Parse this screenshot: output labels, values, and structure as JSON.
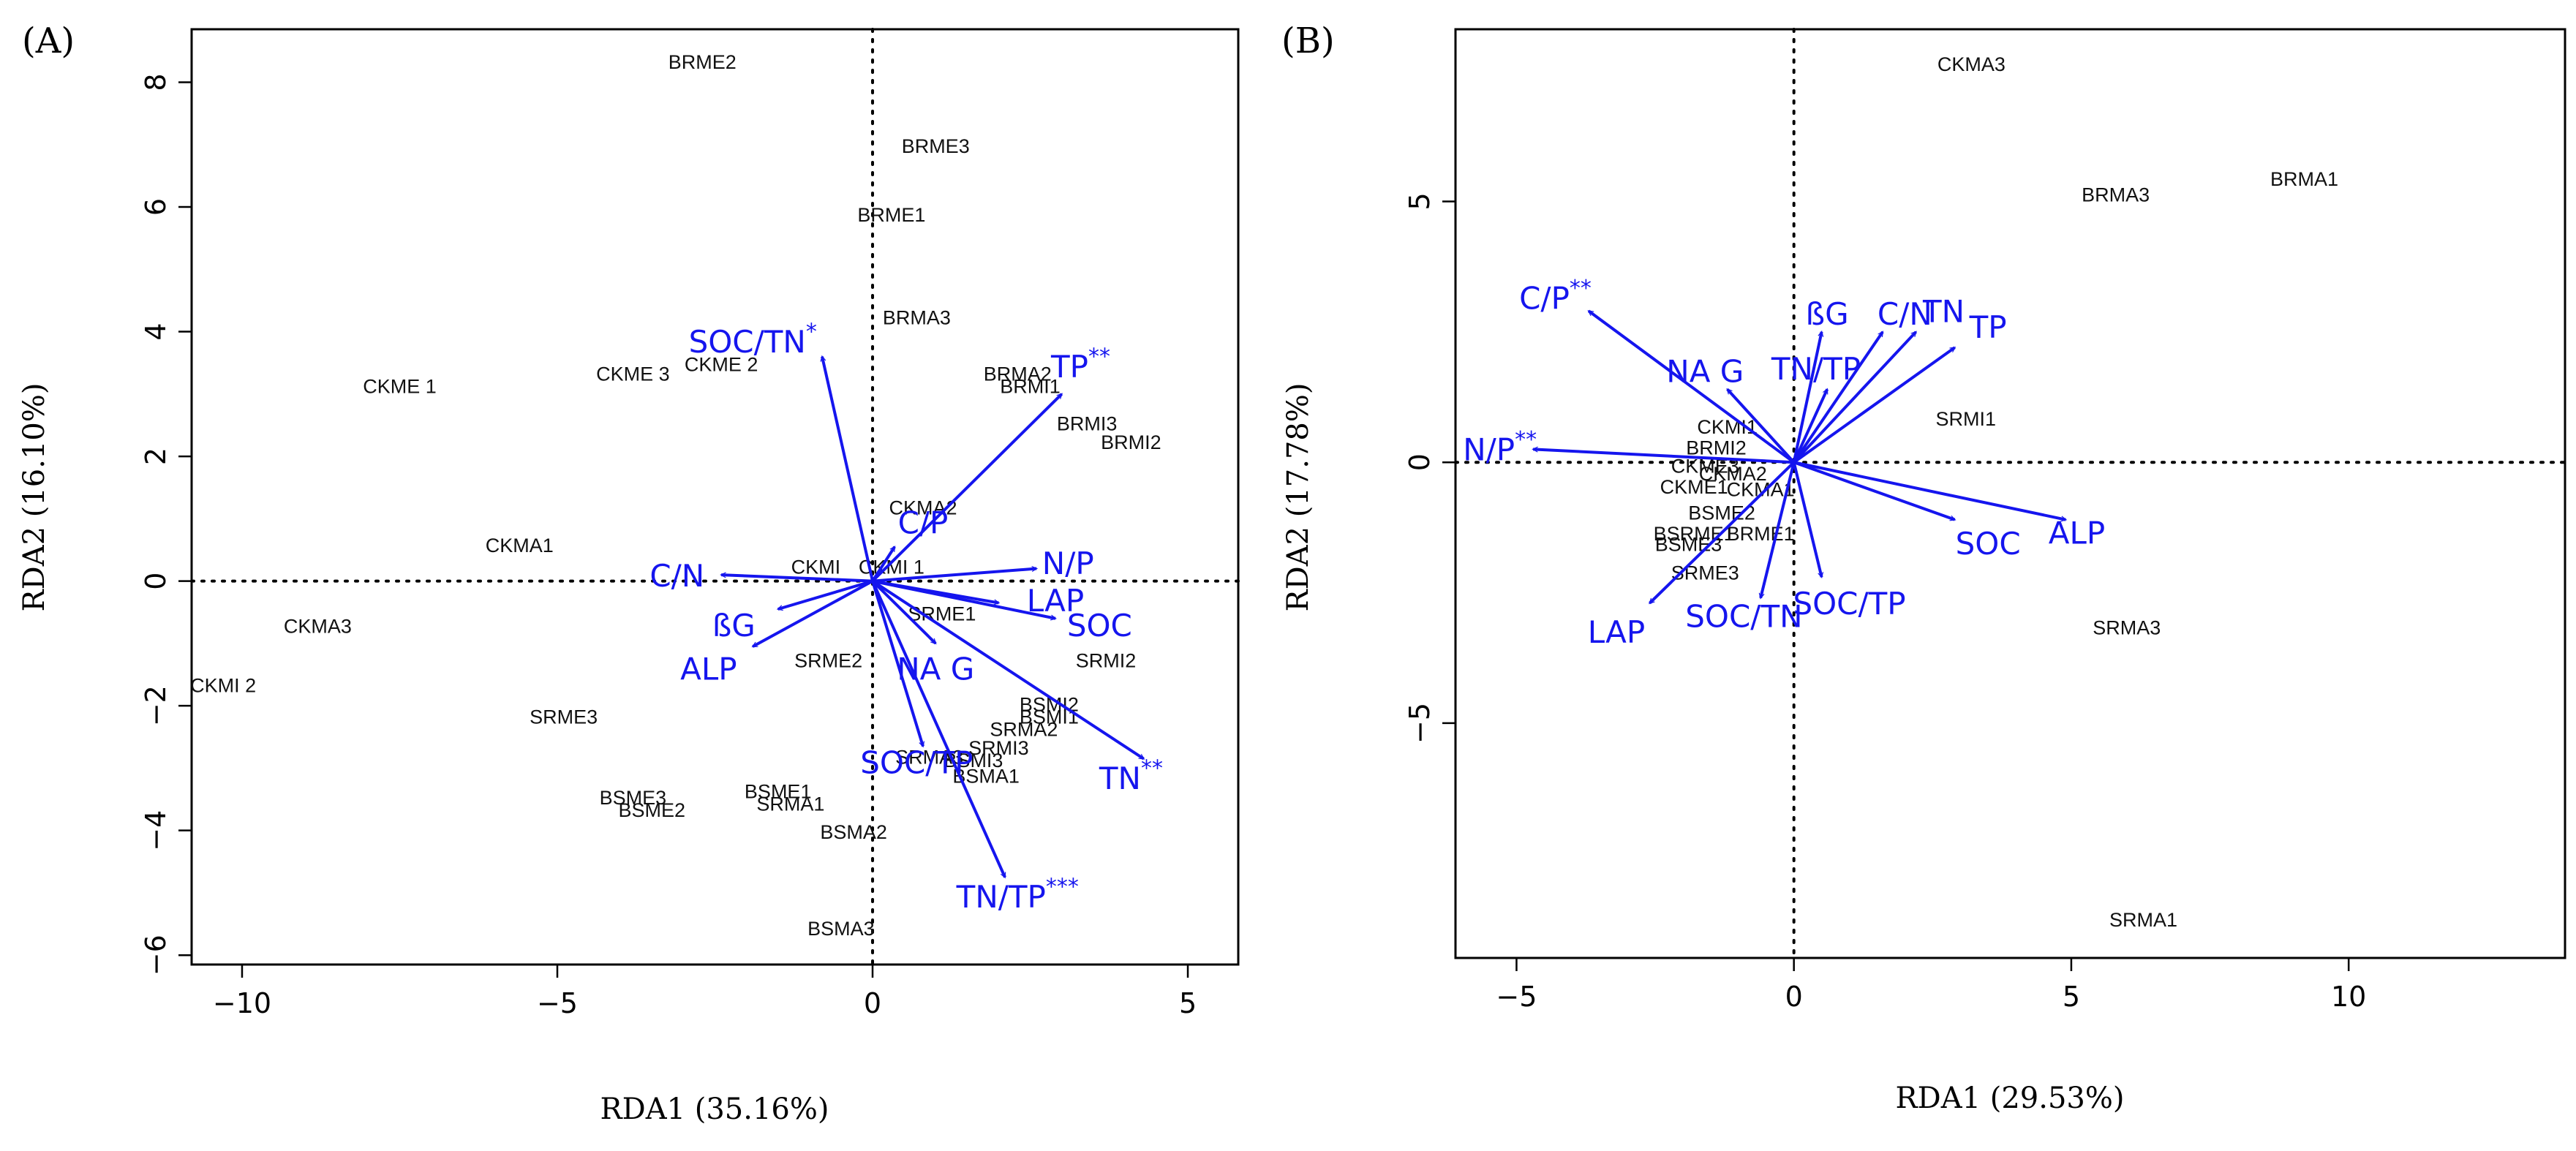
{
  "colors": {
    "arrow": "#1515ee",
    "axis": "#000000",
    "site_text": "#111111"
  },
  "chart_data": [
    {
      "panel": "(A)",
      "type": "scatter",
      "xlabel": "RDA1 (35.16%)",
      "ylabel": "RDA2 (16.10%)",
      "xlim": [
        -10.8,
        5.8
      ],
      "ylim": [
        -6.15,
        8.85
      ],
      "xticks": [
        -10,
        -5,
        0,
        5
      ],
      "yticks": [
        -6,
        -4,
        -2,
        0,
        2,
        4,
        6,
        8
      ],
      "sites": [
        {
          "label": "BRME2",
          "x": -2.7,
          "y": 8.3
        },
        {
          "label": "BRME3",
          "x": 1.0,
          "y": 6.95
        },
        {
          "label": "BRME1",
          "x": 0.3,
          "y": 5.85
        },
        {
          "label": "BRMA3",
          "x": 0.7,
          "y": 4.2
        },
        {
          "label": "BRMA2",
          "x": 2.3,
          "y": 3.3
        },
        {
          "label": "BRMI1",
          "x": 2.5,
          "y": 3.1
        },
        {
          "label": "BRMI3",
          "x": 3.4,
          "y": 2.5
        },
        {
          "label": "BRMI2",
          "x": 4.1,
          "y": 2.2
        },
        {
          "label": "CKME 1",
          "x": -7.5,
          "y": 3.1
        },
        {
          "label": "CKME 3",
          "x": -3.8,
          "y": 3.3
        },
        {
          "label": "CKME 2",
          "x": -2.4,
          "y": 3.45
        },
        {
          "label": "CKMA1",
          "x": -5.6,
          "y": 0.55
        },
        {
          "label": "CKMA2",
          "x": 0.8,
          "y": 1.15
        },
        {
          "label": "CKMI",
          "x": -0.9,
          "y": 0.2
        },
        {
          "label": "CKMI 1",
          "x": 0.3,
          "y": 0.2
        },
        {
          "label": "CKMA3",
          "x": -8.8,
          "y": -0.75
        },
        {
          "label": "CKMI 2",
          "x": -10.3,
          "y": -1.7
        },
        {
          "label": "SRME1",
          "x": 1.1,
          "y": -0.55
        },
        {
          "label": "SRME2",
          "x": -0.7,
          "y": -1.3
        },
        {
          "label": "SRMI2",
          "x": 3.7,
          "y": -1.3
        },
        {
          "label": "SRME3",
          "x": -4.9,
          "y": -2.2
        },
        {
          "label": "BSMI2",
          "x": 2.8,
          "y": -2.0
        },
        {
          "label": "BSMI1",
          "x": 2.8,
          "y": -2.2
        },
        {
          "label": "SRMA2",
          "x": 2.4,
          "y": -2.4
        },
        {
          "label": "SRMI3",
          "x": 2.0,
          "y": -2.7
        },
        {
          "label": "SRMA3",
          "x": 0.9,
          "y": -2.85
        },
        {
          "label": "BSMI3",
          "x": 1.6,
          "y": -2.9
        },
        {
          "label": "BSMA1",
          "x": 1.8,
          "y": -3.15
        },
        {
          "label": "BSME3",
          "x": -3.8,
          "y": -3.5
        },
        {
          "label": "BSME2",
          "x": -3.5,
          "y": -3.7
        },
        {
          "label": "BSME1",
          "x": -1.5,
          "y": -3.4
        },
        {
          "label": "SRMA1",
          "x": -1.3,
          "y": -3.6
        },
        {
          "label": "BSMA2",
          "x": -0.3,
          "y": -4.05
        },
        {
          "label": "BSMA3",
          "x": -0.5,
          "y": -5.6
        }
      ],
      "vectors": [
        {
          "label": "SOC/TN",
          "sig": "*",
          "x": -0.8,
          "y": 3.6,
          "lx": -1.9,
          "ly": 3.8
        },
        {
          "label": "TP",
          "sig": "**",
          "x": 3.0,
          "y": 3.0,
          "lx": 3.3,
          "ly": 3.4
        },
        {
          "label": "C/P",
          "sig": "",
          "x": 0.35,
          "y": 0.55,
          "lx": 0.8,
          "ly": 0.9
        },
        {
          "label": "C/N",
          "sig": "",
          "x": -2.4,
          "y": 0.1,
          "lx": -3.1,
          "ly": 0.05
        },
        {
          "label": "N/P",
          "sig": "",
          "x": 2.6,
          "y": 0.2,
          "lx": 3.1,
          "ly": 0.25
        },
        {
          "label": "LAP",
          "sig": "",
          "x": 2.0,
          "y": -0.35,
          "lx": 2.9,
          "ly": -0.35
        },
        {
          "label": "SOC",
          "sig": "",
          "x": 2.9,
          "y": -0.6,
          "lx": 3.6,
          "ly": -0.75
        },
        {
          "label": "ßG",
          "sig": "",
          "x": -1.5,
          "y": -0.45,
          "lx": -2.2,
          "ly": -0.75
        },
        {
          "label": "ALP",
          "sig": "",
          "x": -1.9,
          "y": -1.05,
          "lx": -2.6,
          "ly": -1.45
        },
        {
          "label": "NA G",
          "sig": "",
          "x": 1.0,
          "y": -1.0,
          "lx": 1.0,
          "ly": -1.45
        },
        {
          "label": "SOC/TP",
          "sig": "",
          "x": 0.8,
          "y": -2.65,
          "lx": 0.7,
          "ly": -2.95
        },
        {
          "label": "TN",
          "sig": "**",
          "x": 4.3,
          "y": -2.85,
          "lx": 4.1,
          "ly": -3.2
        },
        {
          "label": "TN/TP",
          "sig": "***",
          "x": 2.1,
          "y": -4.75,
          "lx": 2.3,
          "ly": -5.1
        }
      ]
    },
    {
      "panel": "(B)",
      "type": "scatter",
      "xlabel": "RDA1 (29.53%)",
      "ylabel": "RDA2 (17.78%)",
      "xlim": [
        -6.1,
        13.9
      ],
      "ylim": [
        -9.5,
        8.3
      ],
      "xticks": [
        -5,
        0,
        5,
        10
      ],
      "yticks": [
        -5,
        0,
        5
      ],
      "sites": [
        {
          "label": "CKMA3",
          "x": 3.2,
          "y": 7.6
        },
        {
          "label": "BRMA1",
          "x": 9.2,
          "y": 5.4
        },
        {
          "label": "BRMA3",
          "x": 5.8,
          "y": 5.1
        },
        {
          "label": "SRMI1",
          "x": 3.1,
          "y": 0.8
        },
        {
          "label": "SRMA3",
          "x": 6.0,
          "y": -3.2
        },
        {
          "label": "SRMA1",
          "x": 6.3,
          "y": -8.8
        },
        {
          "label": "CKMI1",
          "x": -1.2,
          "y": 0.65
        },
        {
          "label": "BRMI2",
          "x": -1.4,
          "y": 0.25
        },
        {
          "label": "CKME3",
          "x": -1.6,
          "y": -0.1
        },
        {
          "label": "CKMA2",
          "x": -1.1,
          "y": -0.25
        },
        {
          "label": "CKME1",
          "x": -1.8,
          "y": -0.5
        },
        {
          "label": "CKMA1",
          "x": -0.6,
          "y": -0.55
        },
        {
          "label": "BSME2",
          "x": -1.3,
          "y": -1.0
        },
        {
          "label": "BSRME1",
          "x": -1.8,
          "y": -1.4
        },
        {
          "label": "BRME1",
          "x": -0.6,
          "y": -1.4
        },
        {
          "label": "BSME3",
          "x": -1.9,
          "y": -1.6
        },
        {
          "label": "SRME3",
          "x": -1.6,
          "y": -2.15
        }
      ],
      "vectors": [
        {
          "label": "C/P",
          "sig": "**",
          "x": -3.7,
          "y": 2.9,
          "lx": -4.3,
          "ly": 3.1
        },
        {
          "label": "N/P",
          "sig": "**",
          "x": -4.7,
          "y": 0.25,
          "lx": -5.3,
          "ly": 0.2
        },
        {
          "label": "NA G",
          "sig": "",
          "x": -1.2,
          "y": 1.4,
          "lx": -1.6,
          "ly": 1.7
        },
        {
          "label": "ßG",
          "sig": "",
          "x": 0.5,
          "y": 2.5,
          "lx": 0.6,
          "ly": 2.8
        },
        {
          "label": "C/N",
          "sig": "",
          "x": 1.6,
          "y": 2.5,
          "lx": 2.0,
          "ly": 2.8
        },
        {
          "label": "TN",
          "sig": "",
          "x": 2.2,
          "y": 2.5,
          "lx": 2.7,
          "ly": 2.85
        },
        {
          "label": "TP",
          "sig": "",
          "x": 2.9,
          "y": 2.2,
          "lx": 3.5,
          "ly": 2.55
        },
        {
          "label": "TN/TP",
          "sig": "",
          "x": 0.6,
          "y": 1.4,
          "lx": 0.4,
          "ly": 1.75
        },
        {
          "label": "SOC",
          "sig": "",
          "x": 2.9,
          "y": -1.1,
          "lx": 3.5,
          "ly": -1.6
        },
        {
          "label": "ALP",
          "sig": "",
          "x": 4.9,
          "y": -1.1,
          "lx": 5.1,
          "ly": -1.4
        },
        {
          "label": "LAP",
          "sig": "",
          "x": -2.6,
          "y": -2.7,
          "lx": -3.2,
          "ly": -3.3
        },
        {
          "label": "SOC/TP",
          "sig": "",
          "x": 0.5,
          "y": -2.2,
          "lx": 1.0,
          "ly": -2.75
        },
        {
          "label": "SOC/TN",
          "sig": "",
          "x": -0.6,
          "y": -2.6,
          "lx": -0.9,
          "ly": -3.0
        }
      ]
    }
  ]
}
